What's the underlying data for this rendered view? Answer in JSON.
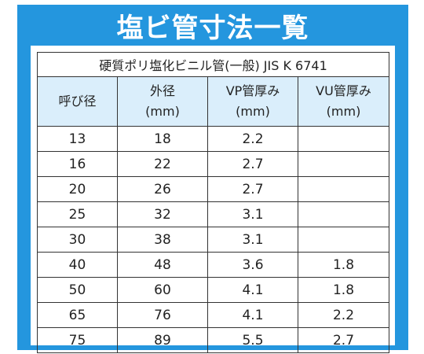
{
  "title": "塩ビ管寸法一覧",
  "table": {
    "caption": "硬質ポリ塩化ビニル管(一般) JIS K 6741",
    "headers": [
      {
        "line1": "呼び径",
        "line2": ""
      },
      {
        "line1": "外径",
        "line2": "(mm)"
      },
      {
        "line1": "VP管厚み",
        "line2": "(mm)"
      },
      {
        "line1": "VU管厚み",
        "line2": "(mm)"
      }
    ],
    "rows": [
      [
        "13",
        "18",
        "2.2",
        ""
      ],
      [
        "16",
        "22",
        "2.7",
        ""
      ],
      [
        "20",
        "26",
        "2.7",
        ""
      ],
      [
        "25",
        "32",
        "3.1",
        ""
      ],
      [
        "30",
        "38",
        "3.1",
        ""
      ],
      [
        "40",
        "48",
        "3.6",
        "1.8"
      ],
      [
        "50",
        "60",
        "4.1",
        "1.8"
      ],
      [
        "65",
        "76",
        "4.1",
        "2.2"
      ],
      [
        "75",
        "89",
        "5.5",
        "2.7"
      ]
    ]
  },
  "colors": {
    "frame": "#2496de",
    "header_background": "#daeefb",
    "title_text": "#ffffff"
  }
}
